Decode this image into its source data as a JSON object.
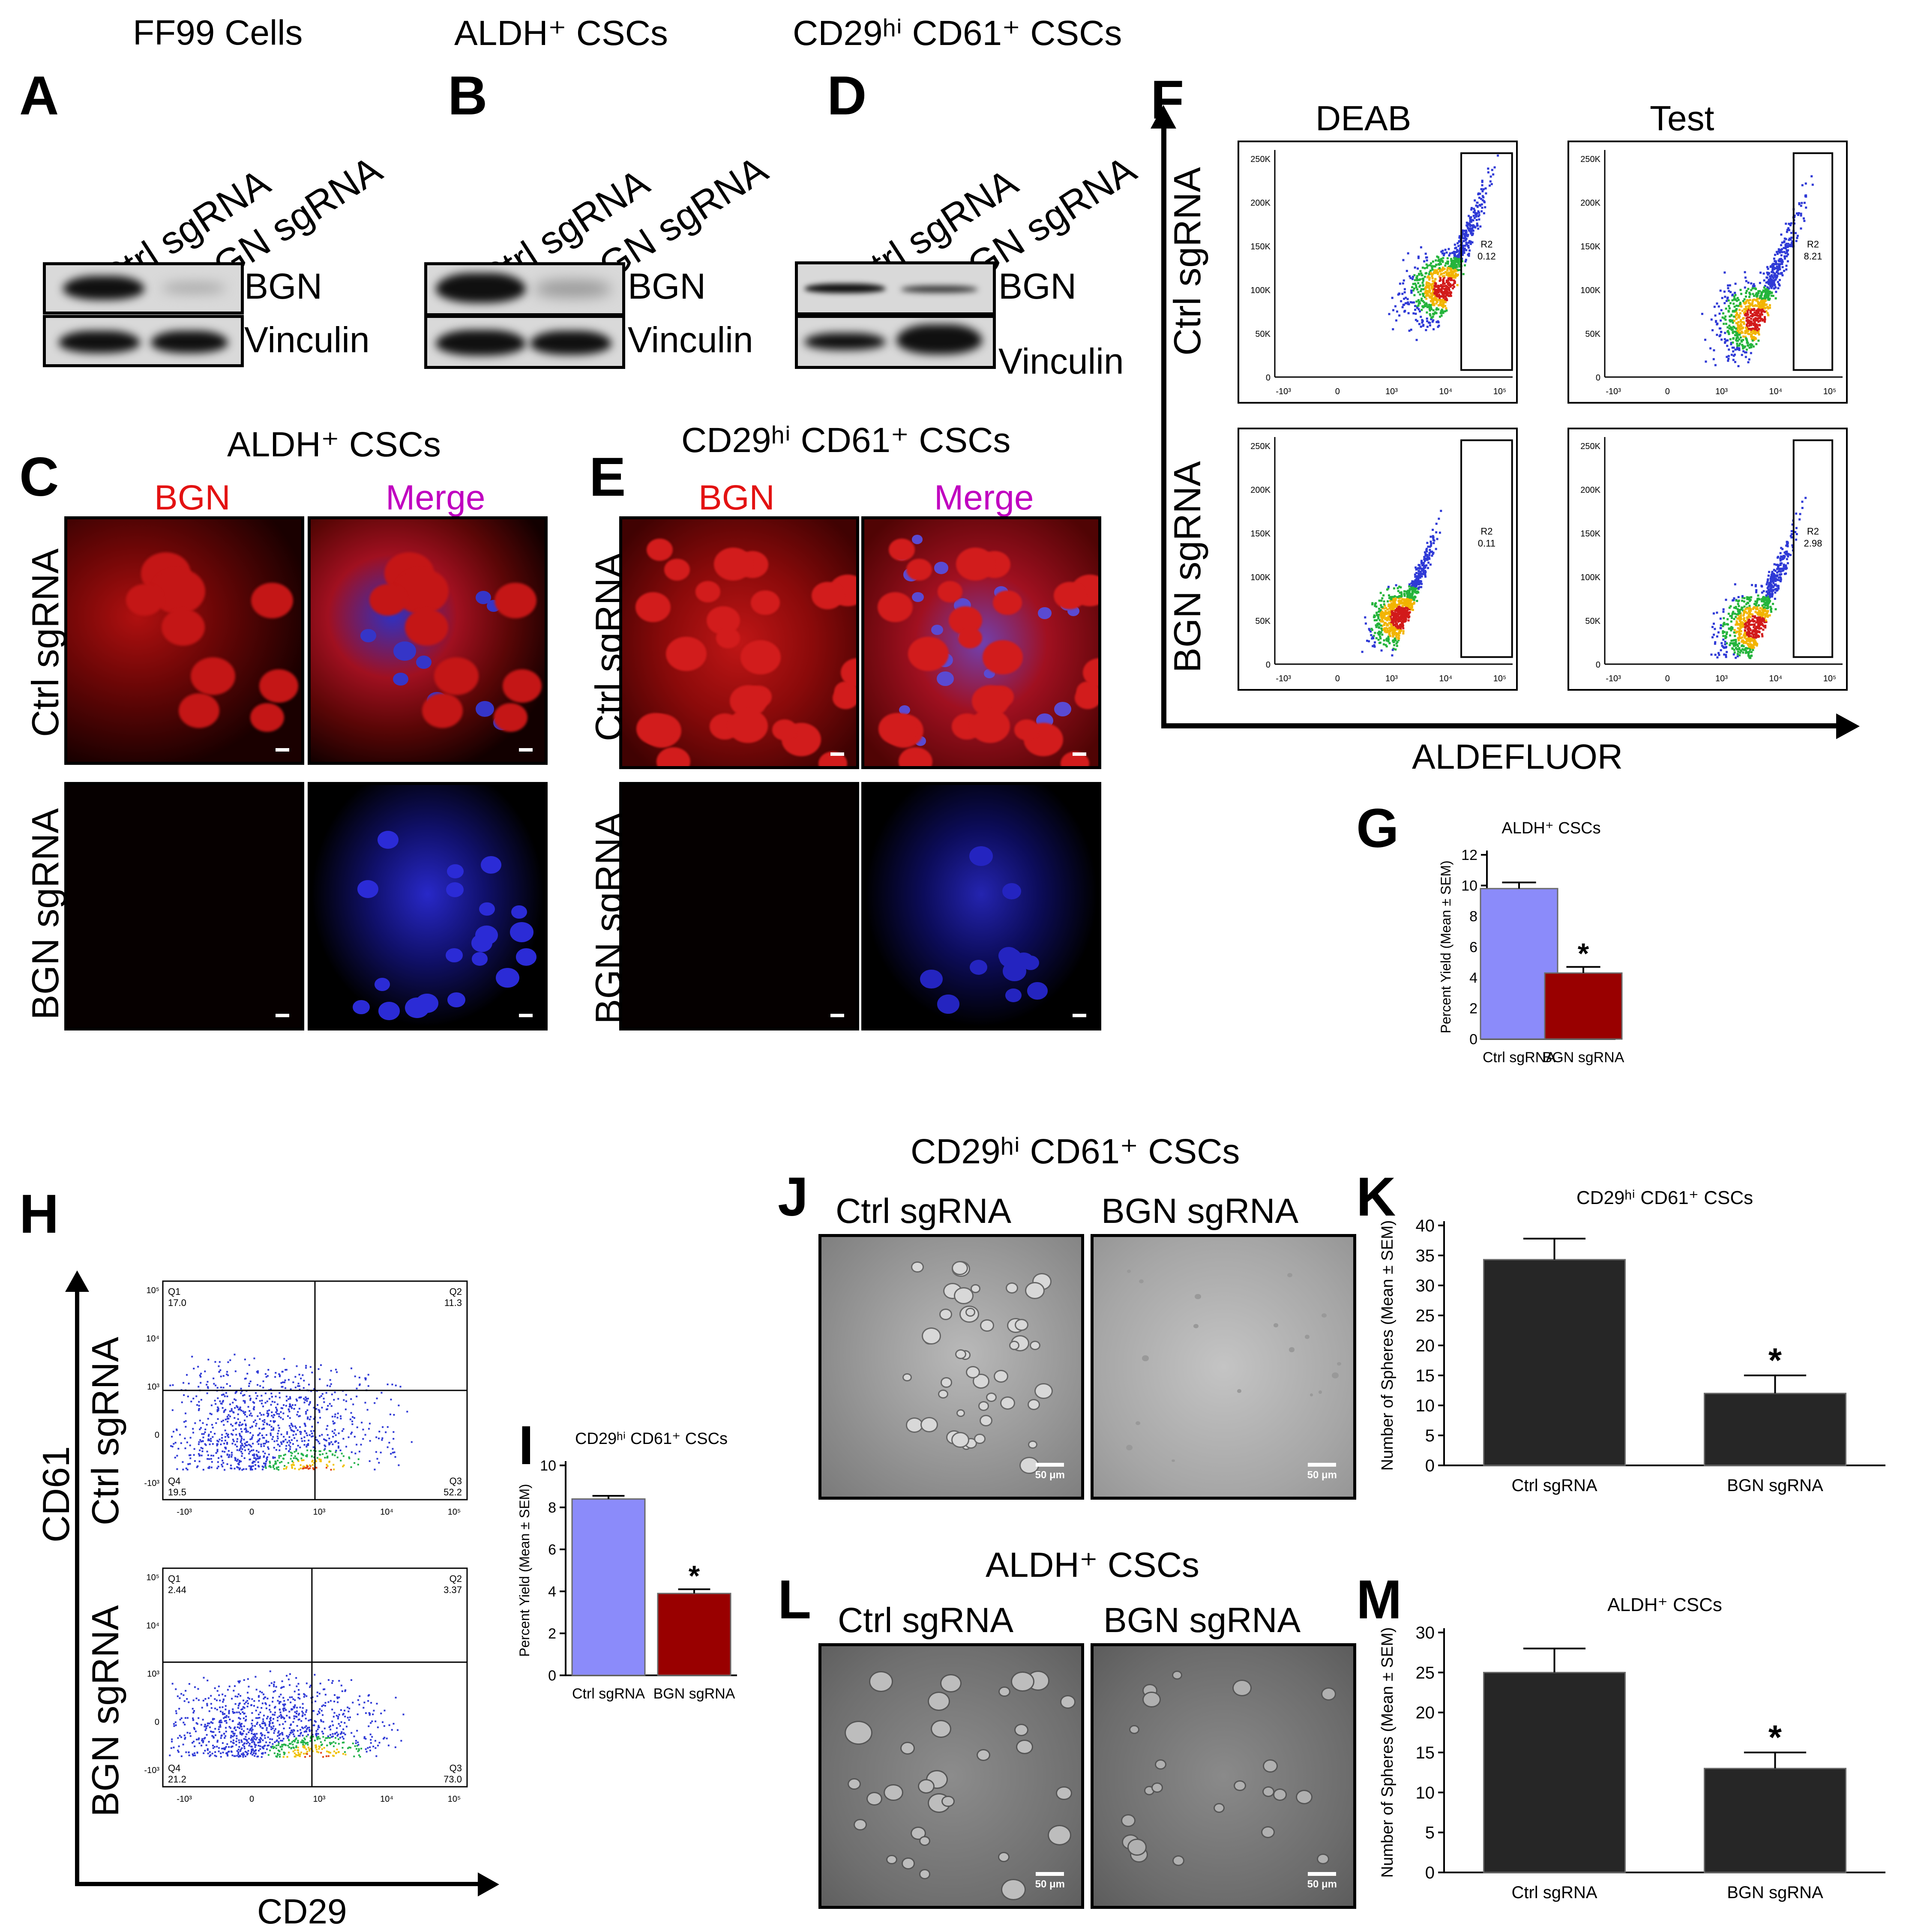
{
  "headers": {
    "ff99": "FF99 Cells",
    "aldh_top": "ALDH⁺ CSCs",
    "cd_top": "CD29ʰⁱ CD61⁺ CSCs",
    "aldh_c": "ALDH⁺ CSCs",
    "cd_e": "CD29ʰⁱ CD61⁺ CSCs",
    "cd_j": "CD29ʰⁱ CD61⁺ CSCs",
    "aldh_l": "ALDH⁺ CSCs"
  },
  "letters": {
    "a": "A",
    "b": "B",
    "c": "C",
    "d": "D",
    "e": "E",
    "f": "F",
    "g": "G",
    "h": "H",
    "i": "I",
    "j": "J",
    "k": "K",
    "l": "L",
    "m": "M"
  },
  "labels": {
    "ctrl": "Ctrl sgRNA",
    "bgn": "BGN sgRNA",
    "bgn_protein": "BGN",
    "vinculin": "Vinculin",
    "merge": "Merge",
    "deab": "DEAB",
    "test": "Test",
    "aldefluor": "ALDEFLUOR",
    "cd61": "CD61",
    "cd29": "CD29",
    "scale_50um": "50 μm"
  },
  "flow_f": {
    "y_ticks": [
      "0",
      "50K",
      "100K",
      "150K",
      "200K",
      "250K"
    ],
    "x_ticks": [
      "-10³",
      "0",
      "10³",
      "10⁴",
      "10⁵"
    ],
    "gates": [
      {
        "name": "R2",
        "value": "0.12"
      },
      {
        "name": "R2",
        "value": "8.21"
      },
      {
        "name": "R2",
        "value": "0.11"
      },
      {
        "name": "R2",
        "value": "2.98"
      }
    ]
  },
  "flow_h": {
    "y_ticks": [
      "-10³",
      "0",
      "10³",
      "10⁴",
      "10⁵"
    ],
    "x_ticks": [
      "-10³",
      "0",
      "10³",
      "10⁴",
      "10⁵"
    ],
    "quadrants_ctrl": {
      "q1": "Q1",
      "q1v": "17.0",
      "q2": "Q2",
      "q2v": "11.3",
      "q3": "Q3",
      "q3v": "52.2",
      "q4": "Q4",
      "q4v": "19.5"
    },
    "quadrants_bgn": {
      "q1": "Q1",
      "q1v": "2.44",
      "q2": "Q2",
      "q2v": "3.37",
      "q3": "Q3",
      "q3v": "73.0",
      "q4": "Q4",
      "q4v": "21.2"
    }
  },
  "colors": {
    "ctrl_bar": "#8b8bfa",
    "bgn_bar": "#990000",
    "dark_bar": "#262626",
    "bgn_stain": "#e31212",
    "merge_label": "#c000c0"
  },
  "chart_data": [
    {
      "id": "G",
      "type": "bar",
      "title": "ALDH⁺ CSCs",
      "ylabel": "Percent Yield (Mean ± SEM)",
      "categories": [
        "Ctrl sgRNA",
        "BGN sgRNA"
      ],
      "values": [
        9.8,
        4.3
      ],
      "errors": [
        0.4,
        0.4
      ],
      "significance": [
        "",
        "*"
      ],
      "ylim": [
        0,
        12
      ],
      "yticks": [
        0,
        2,
        4,
        6,
        8,
        10,
        12
      ]
    },
    {
      "id": "I",
      "type": "bar",
      "title": "CD29ʰⁱ CD61⁺ CSCs",
      "ylabel": "Percent Yield (Mean ± SEM)",
      "categories": [
        "Ctrl sgRNA",
        "BGN sgRNA"
      ],
      "values": [
        8.4,
        3.9
      ],
      "errors": [
        0.15,
        0.2
      ],
      "significance": [
        "",
        "*"
      ],
      "ylim": [
        0,
        10
      ],
      "yticks": [
        0,
        2,
        4,
        6,
        8,
        10
      ]
    },
    {
      "id": "K",
      "type": "bar",
      "title": "CD29ʰⁱ CD61⁺ CSCs",
      "ylabel": "Number of Spheres (Mean ± SEM)",
      "categories": [
        "Ctrl sgRNA",
        "BGN sgRNA"
      ],
      "values": [
        34.3,
        12.0
      ],
      "errors": [
        3.5,
        3.0
      ],
      "significance": [
        "",
        "*"
      ],
      "ylim": [
        0,
        40
      ],
      "yticks": [
        0,
        5,
        10,
        15,
        20,
        25,
        30,
        35,
        40
      ]
    },
    {
      "id": "M",
      "type": "bar",
      "title": "ALDH⁺ CSCs",
      "ylabel": "Number of Spheres (Mean ± SEM)",
      "categories": [
        "Ctrl sgRNA",
        "BGN sgRNA"
      ],
      "values": [
        25.0,
        13.0
      ],
      "errors": [
        3.0,
        2.0
      ],
      "significance": [
        "",
        "*"
      ],
      "ylim": [
        0,
        30
      ],
      "yticks": [
        0,
        5,
        10,
        15,
        20,
        25,
        30
      ]
    }
  ]
}
